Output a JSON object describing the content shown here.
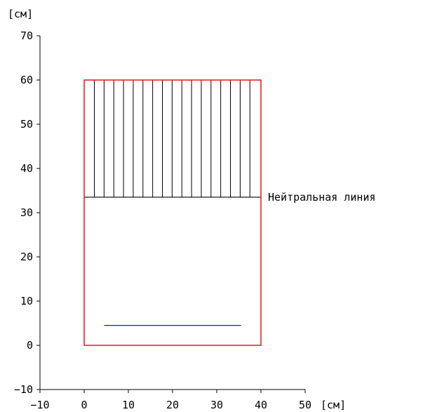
{
  "x_axis": {
    "unit": "[см]",
    "ticks": [
      -10,
      0,
      10,
      20,
      30,
      40,
      50
    ]
  },
  "y_axis": {
    "unit": "[см]",
    "ticks": [
      -10,
      0,
      10,
      20,
      30,
      40,
      50,
      60,
      70
    ]
  },
  "section": {
    "x_range": [
      0,
      40
    ],
    "y_range": [
      0,
      60
    ],
    "outline_color": "#e8141e"
  },
  "compression_zone": {
    "y_from": 33.5,
    "y_to": 60,
    "hatch_x": [
      2.3,
      4.5,
      6.7,
      8.9,
      11.1,
      13.3,
      15.5,
      17.7,
      19.9,
      22.1,
      24.3,
      26.5,
      28.7,
      30.9,
      33.1,
      35.3,
      37.5
    ],
    "hatch_color": "#000000"
  },
  "neutral_line": {
    "y": 33.5,
    "label": "Нейтральная линия",
    "color": "#000000"
  },
  "reinforcement": {
    "y": 4.5,
    "x_from": 4.5,
    "x_to": 35.5,
    "color": "#1a1adb"
  }
}
